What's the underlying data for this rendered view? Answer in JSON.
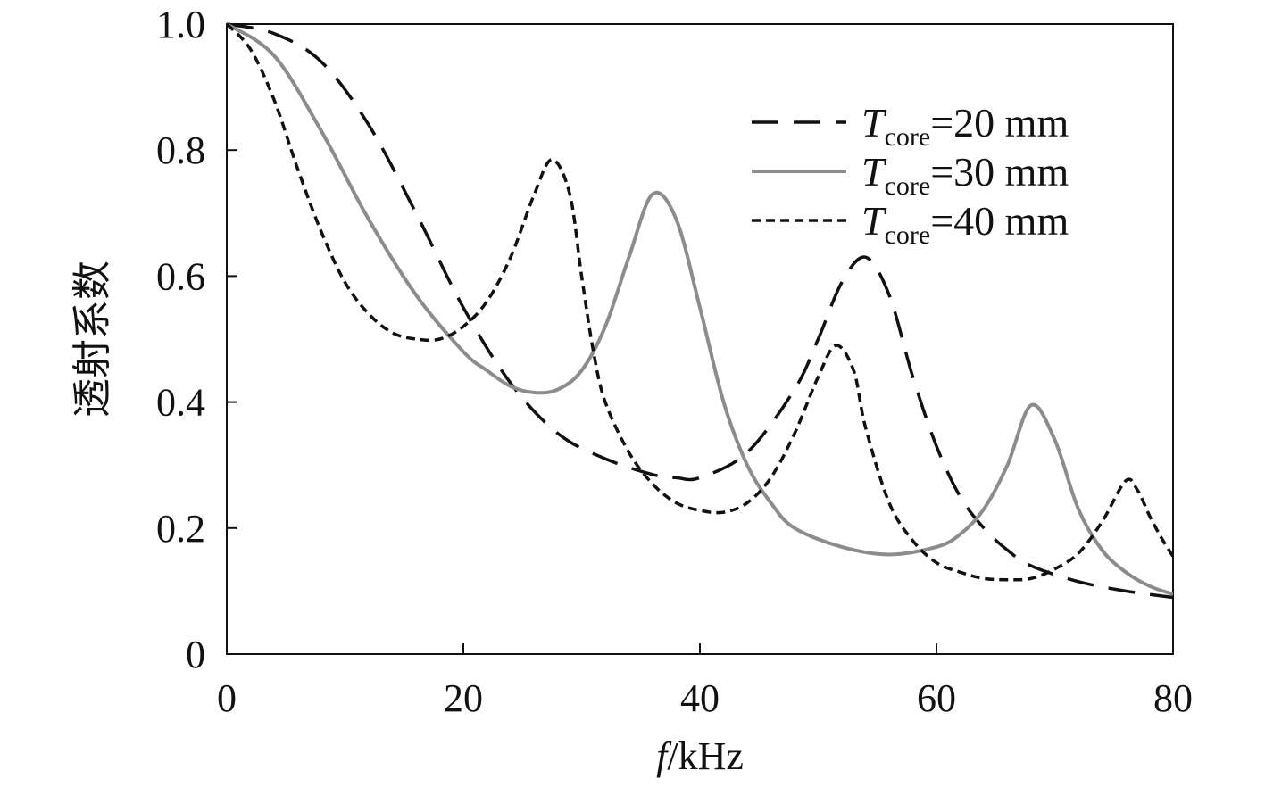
{
  "chart_data": {
    "type": "line",
    "title": "",
    "xlabel_italic": "f",
    "xlabel_unit": "/kHz",
    "ylabel": "透射系数",
    "xlim": [
      0,
      80
    ],
    "ylim": [
      0,
      1.0
    ],
    "x_ticks": [
      "0",
      "20",
      "40",
      "60",
      "80"
    ],
    "y_ticks": [
      "0",
      "0.2",
      "0.4",
      "0.6",
      "0.8",
      "1.0"
    ],
    "grid": false,
    "legend_position": "top-right",
    "series": [
      {
        "name": "Tcore=20 mm",
        "label_symbol": "T",
        "label_sub": "core",
        "label_value": "=20 mm",
        "style": "long-dash",
        "color": "#111111",
        "x": [
          0,
          4,
          8,
          12,
          16,
          20,
          24,
          28,
          32,
          36,
          38,
          40,
          44,
          48,
          50,
          52,
          54,
          56,
          58,
          60,
          62,
          64,
          66,
          68,
          72,
          76,
          80
        ],
        "y": [
          1.0,
          0.985,
          0.94,
          0.84,
          0.7,
          0.55,
          0.43,
          0.35,
          0.31,
          0.285,
          0.28,
          0.28,
          0.32,
          0.42,
          0.5,
          0.59,
          0.63,
          0.57,
          0.44,
          0.33,
          0.25,
          0.2,
          0.165,
          0.14,
          0.115,
          0.1,
          0.09
        ]
      },
      {
        "name": "Tcore=30 mm",
        "label_symbol": "T",
        "label_sub": "core",
        "label_value": "=30 mm",
        "style": "solid",
        "color": "#8c8c8c",
        "x": [
          0,
          4,
          8,
          12,
          16,
          20,
          22,
          24,
          26,
          28,
          30,
          32,
          34,
          36,
          38,
          40,
          42,
          44,
          46,
          48,
          52,
          56,
          60,
          62,
          64,
          66,
          68,
          70,
          72,
          74,
          76,
          78,
          80
        ],
        "y": [
          1.0,
          0.95,
          0.83,
          0.69,
          0.57,
          0.48,
          0.45,
          0.425,
          0.415,
          0.42,
          0.45,
          0.52,
          0.63,
          0.73,
          0.69,
          0.55,
          0.4,
          0.3,
          0.24,
          0.2,
          0.17,
          0.158,
          0.17,
          0.19,
          0.23,
          0.3,
          0.395,
          0.34,
          0.23,
          0.165,
          0.13,
          0.108,
          0.095
        ]
      },
      {
        "name": "Tcore=40 mm",
        "label_symbol": "T",
        "label_sub": "core",
        "label_value": "=40 mm",
        "style": "short-dash",
        "color": "#111111",
        "x": [
          0,
          2,
          4,
          6,
          8,
          10,
          12,
          14,
          16,
          18,
          20,
          22,
          24,
          26,
          27.5,
          29,
          30,
          31,
          32,
          34,
          36,
          38,
          40,
          42,
          44,
          46,
          48,
          50,
          51.5,
          53,
          54,
          56,
          58,
          60,
          62,
          64,
          66,
          68,
          70,
          72,
          74,
          76,
          77,
          78,
          79,
          80
        ],
        "y": [
          1.0,
          0.96,
          0.88,
          0.77,
          0.67,
          0.59,
          0.54,
          0.51,
          0.5,
          0.5,
          0.52,
          0.56,
          0.63,
          0.73,
          0.785,
          0.73,
          0.6,
          0.48,
          0.4,
          0.32,
          0.27,
          0.24,
          0.228,
          0.225,
          0.24,
          0.28,
          0.35,
          0.44,
          0.49,
          0.45,
          0.36,
          0.24,
          0.18,
          0.145,
          0.13,
          0.12,
          0.118,
          0.12,
          0.135,
          0.16,
          0.21,
          0.275,
          0.26,
          0.22,
          0.185,
          0.155
        ]
      }
    ]
  }
}
